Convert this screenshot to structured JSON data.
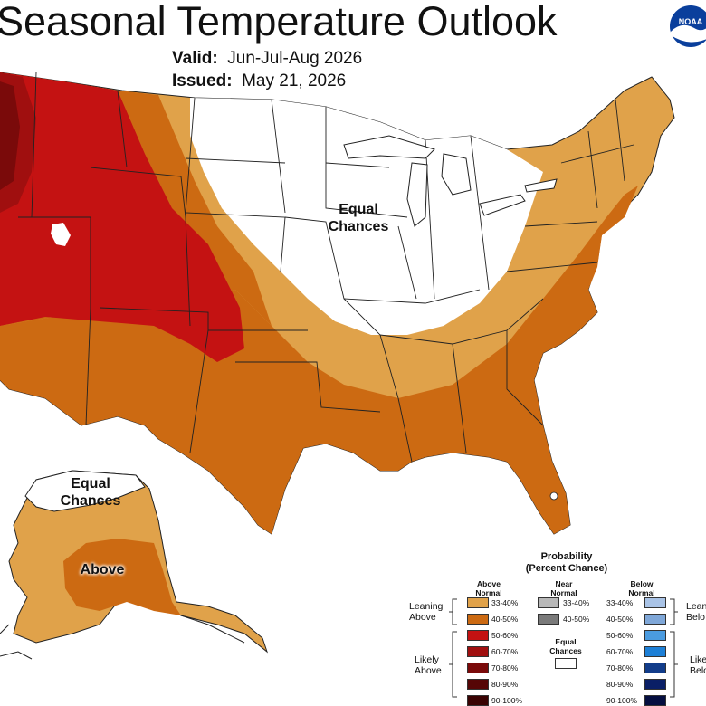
{
  "header": {
    "title": "Seasonal Temperature Outlook",
    "valid_label": "Valid:",
    "valid_value": "Jun-Jul-Aug 2026",
    "issued_label": "Issued:",
    "issued_value": "May 21, 2026"
  },
  "logo": {
    "text": "NOAA",
    "icon": "noaa-logo-icon"
  },
  "map_labels": {
    "conus_equal": [
      "Equal",
      "Chances"
    ],
    "alaska_equal": [
      "Equal",
      "Chances"
    ],
    "alaska_above": "Above"
  },
  "colors": {
    "above_33_40": "#E0A24A",
    "above_40_50": "#CC6A12",
    "above_50_60": "#C41212",
    "above_60_70": "#A00F0F",
    "above_70_80": "#7A0A0A",
    "above_80_90": "#560606",
    "above_90_100": "#3A0303",
    "near_33_40": "#B8B8B8",
    "near_40_50": "#7A7A7A",
    "below_33_40": "#A9C3E6",
    "below_40_50": "#7FA7D8",
    "below_50_60": "#4A9BE0",
    "below_60_70": "#1C7FD6",
    "below_70_80": "#123C8A",
    "below_80_90": "#0A1F66",
    "below_90_100": "#050E40",
    "equal_chances": "#FFFFFF"
  },
  "legend": {
    "title_line1": "Probability",
    "title_line2": "(Percent Chance)",
    "col_above": [
      "Above",
      "Normal"
    ],
    "col_near": [
      "Near",
      "Normal"
    ],
    "col_below": [
      "Below",
      "Normal"
    ],
    "row_leaning": [
      "Leaning",
      "Above"
    ],
    "row_likely": [
      "Likely",
      "Above"
    ],
    "row_leaning_right": [
      "Lean",
      "Belo"
    ],
    "row_likely_right": [
      "Like",
      "Belo"
    ],
    "above_items": [
      "33-40%",
      "40-50%",
      "50-60%",
      "60-70%",
      "70-80%",
      "80-90%",
      "90-100%"
    ],
    "near_items": [
      "33-40%",
      "40-50%"
    ],
    "below_items": [
      "33-40%",
      "40-50%",
      "50-60%",
      "60-70%",
      "70-80%",
      "80-90%",
      "90-100%"
    ],
    "equal_label": [
      "Equal",
      "Chances"
    ]
  }
}
